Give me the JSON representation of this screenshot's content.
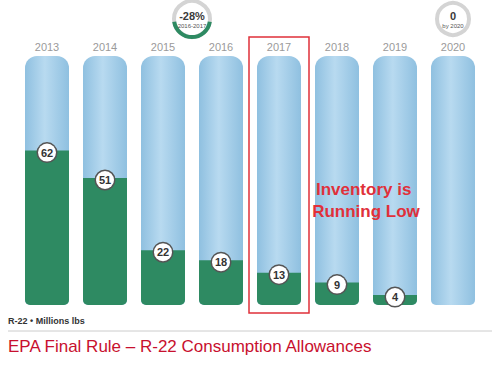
{
  "chart_data": {
    "type": "bar",
    "title": "EPA Final Rule – R-22 Consumption Allowances",
    "ylabel": "R-22 • Millions lbs",
    "categories": [
      "2013",
      "2014",
      "2015",
      "2016",
      "2017",
      "2018",
      "2019",
      "2020"
    ],
    "values": [
      62,
      51,
      22,
      18,
      13,
      9,
      4,
      null
    ],
    "color": "#2e8a62",
    "ylim": [
      0,
      100
    ],
    "tick_labels": "x",
    "grid": false,
    "data_labels": true,
    "highlight": "2017",
    "annotations": [
      {
        "text": "-28%",
        "subtext": "2016-2017"
      },
      {
        "text": "0",
        "subtext": "by 2020"
      },
      {
        "text": "Inventory is Running Low"
      }
    ]
  }
}
